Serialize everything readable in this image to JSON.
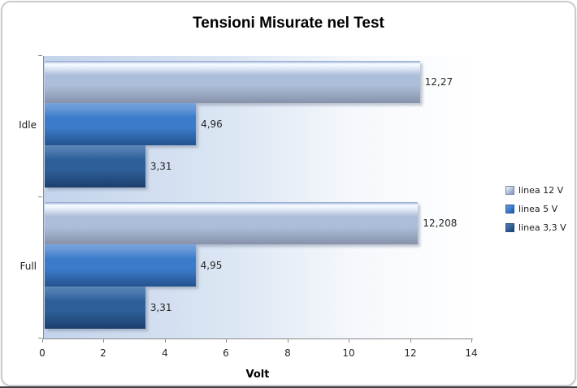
{
  "chart_data": {
    "type": "bar",
    "orientation": "horizontal",
    "title": "Tensioni Misurate nel Test",
    "xlabel": "Volt",
    "xlim": [
      0,
      14
    ],
    "xticks": [
      0,
      2,
      4,
      6,
      8,
      10,
      12,
      14
    ],
    "xtick_labels": [
      "0",
      "2",
      "4",
      "6",
      "8",
      "10",
      "12",
      "14"
    ],
    "grid": false,
    "legend_position": "right",
    "categories": [
      "Idle",
      "Full"
    ],
    "series": [
      {
        "name": "linea 12 V",
        "values": [
          12.27,
          12.208
        ],
        "value_labels": [
          "12,27",
          "12,208"
        ],
        "colors": {
          "top": "#8da5ce",
          "highlight": "#f3f8ff",
          "main": "#adbeda",
          "bottom": "#8792aa",
          "border": "#7d8aa5"
        }
      },
      {
        "name": "linea 5 V",
        "values": [
          4.96,
          4.95
        ],
        "value_labels": [
          "4,96",
          "4,95"
        ],
        "colors": {
          "top": "#7ba5de",
          "highlight": "#6b9bd9",
          "main": "#3b7cca",
          "bottom": "#24528e",
          "border": "#2a5d9e"
        }
      },
      {
        "name": "linea 3,3 V",
        "values": [
          3.31,
          3.31
        ],
        "value_labels": [
          "3,31",
          "3,31"
        ],
        "colors": {
          "top": "#6189b8",
          "highlight": "#507db1",
          "main": "#2e5f99",
          "bottom": "#1c3f6c",
          "border": "#234a7a"
        }
      }
    ],
    "plot_bg": {
      "left": "#c3d3eb",
      "mid": "#dde7f4",
      "right": "#ffffff"
    },
    "axis_color": "#8c8c8c",
    "text_color": "#262626"
  }
}
